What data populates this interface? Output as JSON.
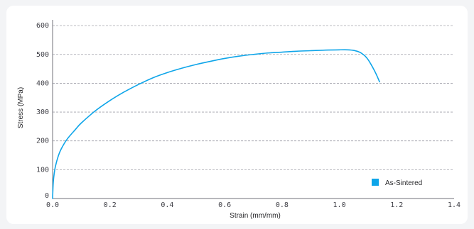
{
  "chart_data": {
    "type": "line",
    "title": "",
    "xlabel": "Strain (mm/mm)",
    "ylabel": "Stress (MPa)",
    "xlim": [
      0.0,
      1.4
    ],
    "ylim": [
      0,
      620
    ],
    "xticks": [
      0.0,
      0.2,
      0.4,
      0.6,
      0.8,
      1.0,
      1.2,
      1.4
    ],
    "xtick_labels": [
      "0.0",
      "0.2",
      "0.4",
      "0.6",
      "0.8",
      "1.0",
      "1.2",
      "1.4"
    ],
    "yticks": [
      0,
      100,
      200,
      300,
      400,
      500,
      600
    ],
    "ytick_labels": [
      "0",
      "100",
      "200",
      "300",
      "400",
      "500",
      "600"
    ],
    "grid": "horizontal-dashed",
    "legend_position": "bottom-right",
    "series": [
      {
        "name": "As-Sintered",
        "color": "#0ea5e9",
        "x": [
          0.0,
          0.002,
          0.005,
          0.01,
          0.02,
          0.03,
          0.05,
          0.08,
          0.1,
          0.15,
          0.2,
          0.25,
          0.3,
          0.35,
          0.4,
          0.45,
          0.5,
          0.55,
          0.6,
          0.65,
          0.7,
          0.75,
          0.8,
          0.85,
          0.9,
          0.95,
          1.0,
          1.03,
          1.05,
          1.07,
          1.08,
          1.09,
          1.1,
          1.11,
          1.12,
          1.13,
          1.14
        ],
        "y": [
          0,
          50,
          82,
          112,
          148,
          172,
          205,
          240,
          262,
          305,
          340,
          370,
          396,
          419,
          437,
          452,
          465,
          476,
          486,
          494,
          500,
          505,
          508,
          511,
          513,
          515,
          516,
          516,
          514,
          508,
          502,
          494,
          482,
          466,
          448,
          428,
          405
        ]
      }
    ]
  }
}
